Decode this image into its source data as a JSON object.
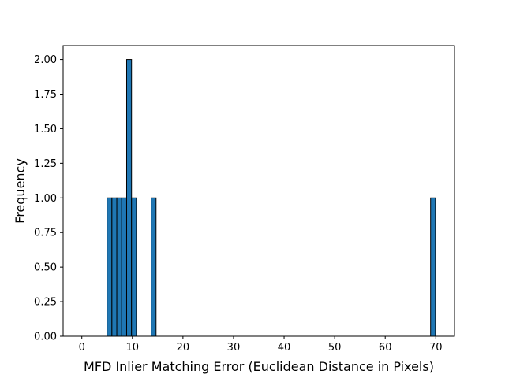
{
  "chart_data": {
    "type": "bar",
    "title": "",
    "xlabel": "MFD Inlier Matching Error (Euclidean Distance in Pixels)",
    "ylabel": "Frequency",
    "xlim": [
      -3.7,
      73.7
    ],
    "ylim": [
      0,
      2.1
    ],
    "grid": false,
    "legend": "none",
    "x_ticks": [
      0,
      10,
      20,
      30,
      40,
      50,
      60,
      70
    ],
    "x_tick_labels": [
      "0",
      "10",
      "20",
      "30",
      "40",
      "50",
      "60",
      "70"
    ],
    "y_ticks": [
      0,
      0.25,
      0.5,
      0.75,
      1.0,
      1.25,
      1.5,
      1.75,
      2.0
    ],
    "y_tick_labels": [
      "0.00",
      "0.25",
      "0.50",
      "0.75",
      "1.00",
      "1.25",
      "1.50",
      "1.75",
      "2.00"
    ],
    "bin_width": 0.97,
    "bars": [
      {
        "x0": 4.98,
        "value": 1
      },
      {
        "x0": 5.95,
        "value": 1
      },
      {
        "x0": 6.92,
        "value": 1
      },
      {
        "x0": 7.89,
        "value": 1
      },
      {
        "x0": 8.86,
        "value": 2
      },
      {
        "x0": 9.83,
        "value": 1
      },
      {
        "x0": 13.71,
        "value": 1
      },
      {
        "x0": 68.97,
        "value": 1
      }
    ],
    "colors": {
      "bar_fill": "#1f77b4",
      "bar_edge": "#000000"
    }
  }
}
